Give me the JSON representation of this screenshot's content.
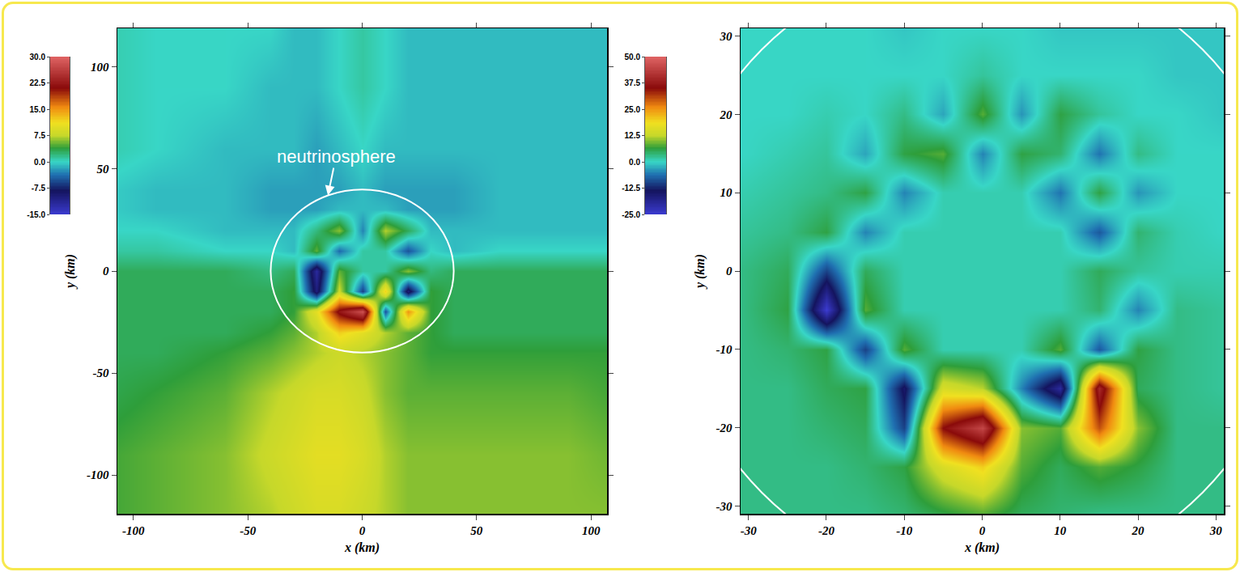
{
  "chart_data": [
    {
      "type": "heatmap",
      "x_label": "x (km)",
      "y_label": "y (km)",
      "xlim": [
        -107,
        107
      ],
      "ylim": [
        -119,
        119
      ],
      "xticks": [
        -100,
        -50,
        0,
        50,
        100
      ],
      "yticks": [
        -100,
        -50,
        0,
        50,
        100
      ],
      "annotation": "neutrinosphere",
      "neutrinosphere_radius": 40,
      "colorbar": {
        "range": [
          -15,
          30
        ],
        "ticks": [
          {
            "value": -15,
            "label": "-15.0"
          },
          {
            "value": -7.5,
            "label": "-7.5"
          },
          {
            "value": 0,
            "label": "0.0"
          },
          {
            "value": 7.5,
            "label": "7.5"
          },
          {
            "value": 15,
            "label": "15.0"
          },
          {
            "value": 22.5,
            "label": "22.5"
          },
          {
            "value": 30,
            "label": "30.0"
          }
        ]
      },
      "x": [
        -120,
        -90,
        -60,
        -40,
        -30,
        -20,
        -10,
        0,
        10,
        20,
        30,
        40,
        60,
        90,
        120
      ],
      "y": [
        -120,
        -90,
        -60,
        -40,
        -30,
        -20,
        -10,
        0,
        10,
        20,
        30,
        40,
        60,
        90,
        120
      ],
      "z": [
        [
          4,
          5,
          6,
          7,
          8,
          9,
          9,
          8,
          7,
          6,
          6,
          6,
          6,
          6,
          6
        ],
        [
          4,
          5,
          6,
          8,
          9,
          10,
          10,
          9,
          7,
          6,
          6,
          6,
          6,
          6,
          5
        ],
        [
          3,
          4,
          5,
          7,
          8,
          9,
          9,
          8,
          6,
          5,
          5,
          5,
          5,
          5,
          4
        ],
        [
          3,
          3,
          4,
          5,
          6,
          7,
          8,
          7,
          6,
          5,
          4,
          4,
          4,
          4,
          4
        ],
        [
          3,
          3,
          3,
          4,
          5,
          7,
          12,
          10,
          7,
          5,
          4,
          3,
          3,
          3,
          3
        ],
        [
          3,
          3,
          3,
          3,
          4,
          10,
          22,
          28,
          -5,
          15,
          4,
          3,
          3,
          3,
          3
        ],
        [
          3,
          3,
          3,
          3,
          4,
          -10,
          8,
          -6,
          12,
          -10,
          4,
          3,
          3,
          3,
          3
        ],
        [
          3,
          3,
          3,
          2,
          3,
          -12,
          5,
          1,
          1,
          6,
          2,
          3,
          3,
          3,
          3
        ],
        [
          1,
          1,
          0,
          0,
          -1,
          5,
          -4,
          1,
          1,
          -5,
          0,
          -1,
          0,
          0,
          0
        ],
        [
          0,
          0,
          -1,
          -1,
          -1,
          2,
          6,
          -3,
          7,
          3,
          -1,
          -1,
          -1,
          -1,
          -1
        ],
        [
          0,
          -1,
          -1,
          -2,
          -2,
          -2,
          -1,
          -1,
          -1,
          -2,
          -2,
          -2,
          -1,
          -1,
          -1
        ],
        [
          0,
          -1,
          -1,
          -2,
          -2,
          -2,
          -2,
          -1,
          -2,
          -2,
          -2,
          -2,
          -1,
          -1,
          -1
        ],
        [
          1,
          0,
          -1,
          -1,
          -1,
          -2,
          -1,
          0,
          -1,
          -1,
          -1,
          -1,
          -1,
          -1,
          -1
        ],
        [
          1,
          0,
          0,
          -1,
          -1,
          -1,
          0,
          1,
          0,
          -1,
          -1,
          -1,
          -1,
          -1,
          -1
        ],
        [
          1,
          0,
          0,
          0,
          -1,
          -1,
          0,
          1,
          0,
          -1,
          -1,
          -1,
          -1,
          -1,
          -1
        ]
      ]
    },
    {
      "type": "heatmap",
      "x_label": "x (km)",
      "y_label": "y (km)",
      "xlim": [
        -31,
        31
      ],
      "ylim": [
        -31,
        31
      ],
      "xticks": [
        -30,
        -20,
        -10,
        0,
        10,
        20,
        30
      ],
      "yticks": [
        -30,
        -20,
        -10,
        0,
        10,
        20,
        30
      ],
      "neutrinosphere_radius": 40,
      "colorbar": {
        "range": [
          -25,
          50
        ],
        "ticks": [
          {
            "value": -25,
            "label": "-25.0"
          },
          {
            "value": -12.5,
            "label": "-12.5"
          },
          {
            "value": 0,
            "label": "0.0"
          },
          {
            "value": 12.5,
            "label": "12.5"
          },
          {
            "value": 25,
            "label": "25.0"
          },
          {
            "value": 37.5,
            "label": "37.5"
          },
          {
            "value": 50,
            "label": "50.0"
          }
        ]
      },
      "x": [
        -31,
        -25,
        -20,
        -15,
        -10,
        -5,
        0,
        5,
        10,
        15,
        20,
        25,
        31
      ],
      "y": [
        -31,
        -25,
        -20,
        -15,
        -10,
        -5,
        0,
        5,
        10,
        15,
        20,
        25,
        31
      ],
      "z": [
        [
          3,
          3,
          3,
          3,
          4,
          6,
          8,
          5,
          4,
          3,
          3,
          3,
          3
        ],
        [
          3,
          3,
          3,
          4,
          6,
          15,
          20,
          8,
          5,
          8,
          6,
          3,
          3
        ],
        [
          3,
          3,
          4,
          5,
          -10,
          35,
          45,
          10,
          8,
          30,
          10,
          3,
          3
        ],
        [
          3,
          3,
          5,
          6,
          -15,
          15,
          12,
          -5,
          -20,
          40,
          5,
          3,
          2
        ],
        [
          3,
          4,
          6,
          -10,
          8,
          1,
          1,
          1,
          8,
          -8,
          6,
          3,
          2
        ],
        [
          3,
          6,
          -25,
          8,
          1,
          1,
          1,
          1,
          1,
          4,
          -5,
          3,
          2
        ],
        [
          3,
          5,
          -10,
          5,
          1,
          1,
          1,
          1,
          1,
          5,
          2,
          1,
          1
        ],
        [
          2,
          3,
          6,
          -5,
          1,
          1,
          1,
          1,
          1,
          -8,
          4,
          1,
          0
        ],
        [
          1,
          2,
          3,
          6,
          -5,
          1,
          1,
          1,
          -6,
          6,
          -4,
          0,
          0
        ],
        [
          0,
          1,
          2,
          -3,
          6,
          8,
          -5,
          6,
          4,
          -6,
          3,
          0,
          0
        ],
        [
          0,
          0,
          1,
          0,
          3,
          -3,
          8,
          -4,
          6,
          2,
          0,
          0,
          -1
        ],
        [
          0,
          0,
          0,
          0,
          0,
          0,
          2,
          0,
          0,
          0,
          0,
          -1,
          -1
        ],
        [
          0,
          0,
          0,
          0,
          -1,
          0,
          0,
          0,
          -1,
          -1,
          -1,
          -1,
          -1
        ]
      ]
    }
  ]
}
